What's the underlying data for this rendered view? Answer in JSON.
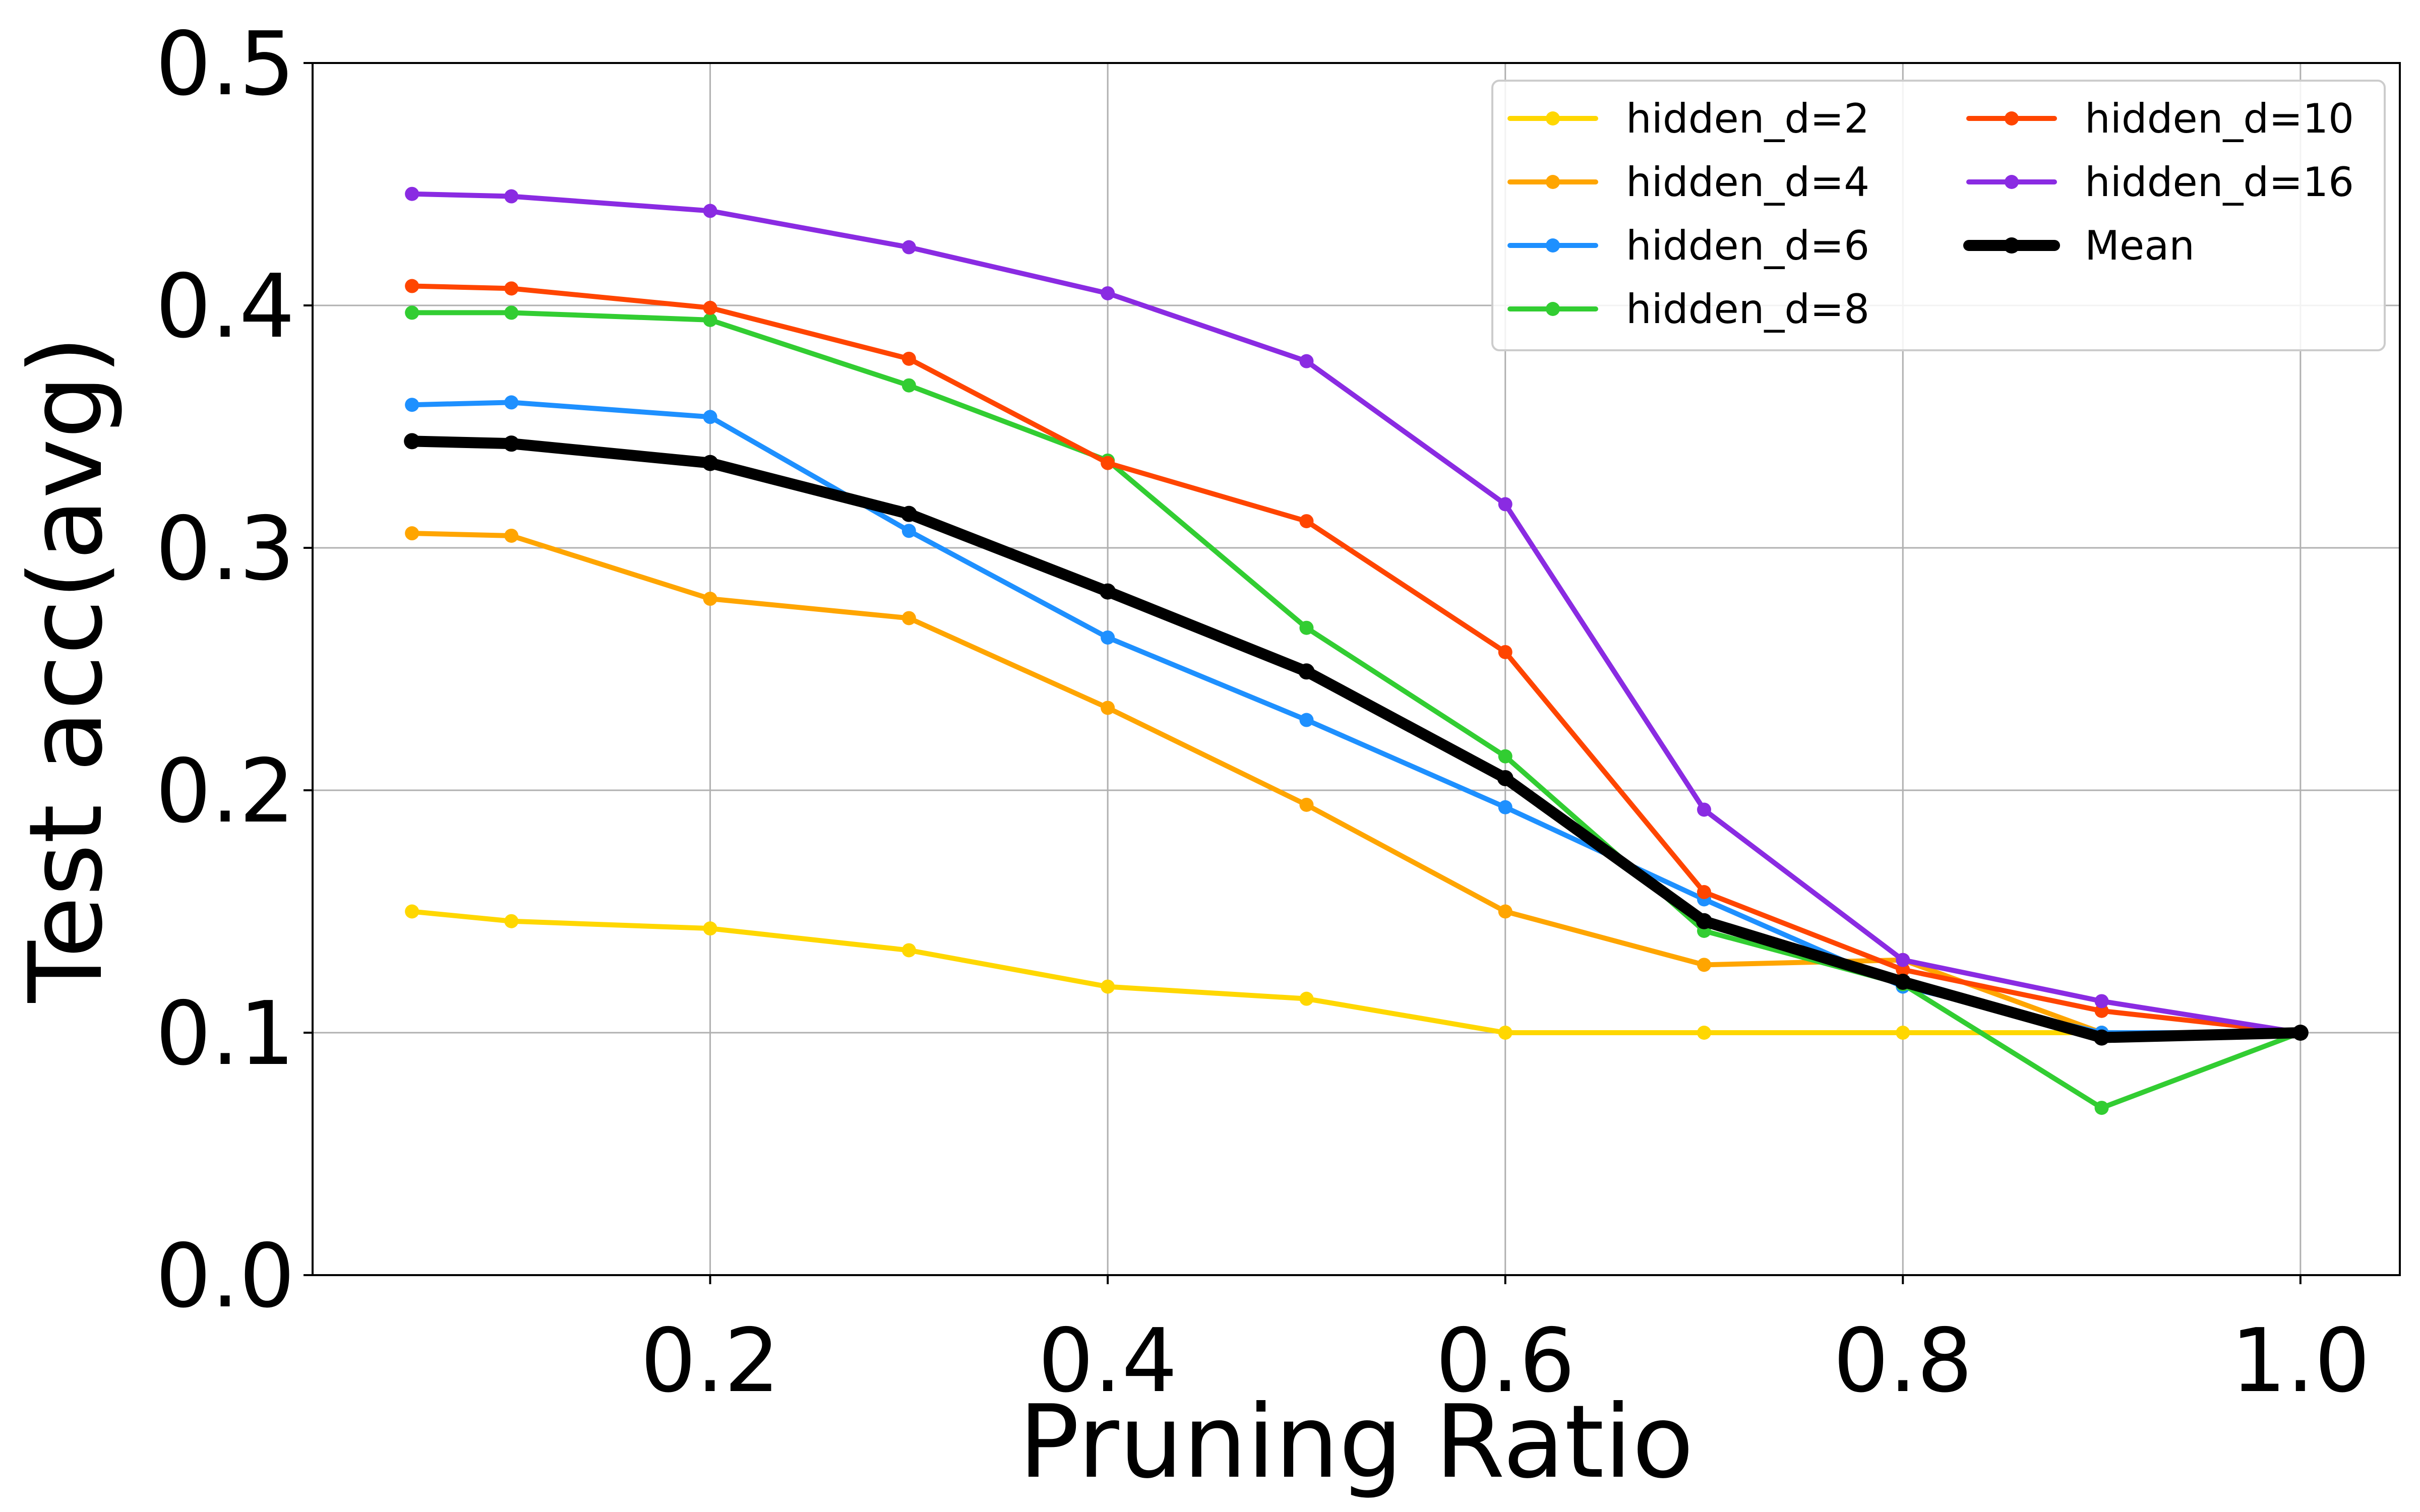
{
  "chart_data": {
    "type": "line",
    "title": "",
    "xlabel": "Pruning Ratio",
    "ylabel": "Test acc(avg)",
    "xlim": [
      0.0,
      1.05
    ],
    "ylim": [
      0.0,
      0.5
    ],
    "xticks": [
      0.2,
      0.4,
      0.6,
      0.8,
      1.0
    ],
    "xtick_labels": [
      "0.2",
      "0.4",
      "0.6",
      "0.8",
      "1.0"
    ],
    "yticks": [
      0.0,
      0.1,
      0.2,
      0.3,
      0.4,
      0.5
    ],
    "ytick_labels": [
      "0.0",
      "0.1",
      "0.2",
      "0.3",
      "0.4",
      "0.5"
    ],
    "grid": true,
    "legend": {
      "position": "top-right",
      "columns": 2
    },
    "x": [
      0.05,
      0.1,
      0.2,
      0.3,
      0.4,
      0.5,
      0.6,
      0.7,
      0.8,
      0.9,
      1.0
    ],
    "series": [
      {
        "name": "hidden_d=2",
        "color": "#FFD700",
        "values": [
          0.15,
          0.146,
          0.143,
          0.134,
          0.119,
          0.114,
          0.1,
          0.1,
          0.1,
          0.1,
          0.1
        ]
      },
      {
        "name": "hidden_d=4",
        "color": "#FFA500",
        "values": [
          0.306,
          0.305,
          0.279,
          0.271,
          0.234,
          0.194,
          0.15,
          0.128,
          0.13,
          0.1,
          0.1
        ]
      },
      {
        "name": "hidden_d=6",
        "color": "#1E90FF",
        "values": [
          0.359,
          0.36,
          0.354,
          0.307,
          0.263,
          0.229,
          0.193,
          0.155,
          0.119,
          0.1,
          0.1
        ]
      },
      {
        "name": "hidden_d=8",
        "color": "#32CD32",
        "values": [
          0.397,
          0.397,
          0.394,
          0.367,
          0.336,
          0.267,
          0.214,
          0.142,
          0.12,
          0.069,
          0.1
        ]
      },
      {
        "name": "hidden_d=10",
        "color": "#FF4500",
        "values": [
          0.408,
          0.407,
          0.399,
          0.378,
          0.335,
          0.311,
          0.257,
          0.158,
          0.126,
          0.109,
          0.1
        ]
      },
      {
        "name": "hidden_d=16",
        "color": "#8A2BE2",
        "values": [
          0.446,
          0.445,
          0.439,
          0.424,
          0.405,
          0.377,
          0.318,
          0.192,
          0.13,
          0.113,
          0.1
        ]
      },
      {
        "name": "Mean",
        "color": "#000000",
        "bold": true,
        "values": [
          0.344,
          0.343,
          0.335,
          0.314,
          0.282,
          0.249,
          0.205,
          0.146,
          0.121,
          0.098,
          0.1
        ]
      }
    ]
  }
}
